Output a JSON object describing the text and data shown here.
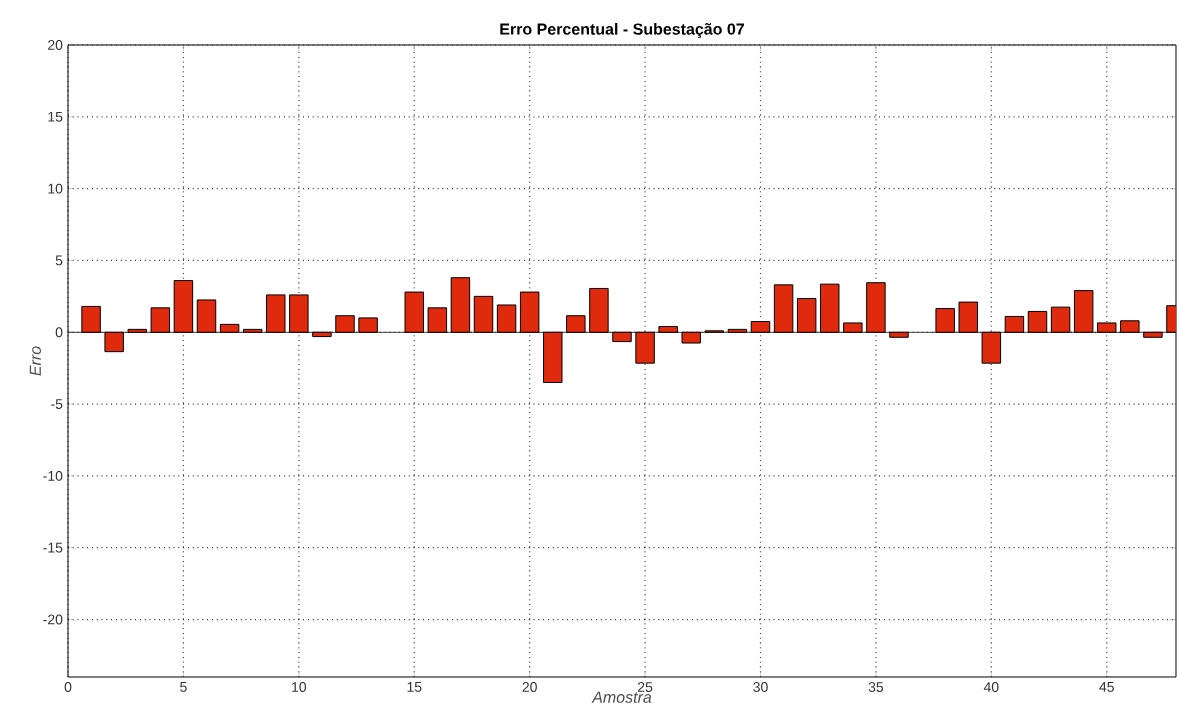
{
  "chart_data": {
    "type": "bar",
    "title": "Erro Percentual - Subestação 07",
    "xlabel": "Amostra",
    "ylabel": "Erro",
    "x": [
      1,
      2,
      3,
      4,
      5,
      6,
      7,
      8,
      9,
      10,
      11,
      12,
      13,
      14,
      15,
      16,
      17,
      18,
      19,
      20,
      21,
      22,
      23,
      24,
      25,
      26,
      27,
      28,
      29,
      30,
      31,
      32,
      33,
      34,
      35,
      36,
      37,
      38,
      39,
      40,
      41,
      42,
      43,
      44,
      45,
      46,
      47,
      48
    ],
    "values": [
      1.8,
      -1.35,
      0.2,
      1.7,
      3.6,
      2.25,
      0.55,
      0.2,
      2.6,
      2.6,
      -0.3,
      1.15,
      1.0,
      null,
      2.8,
      1.7,
      3.8,
      2.5,
      1.9,
      2.8,
      -3.5,
      1.15,
      3.05,
      -0.65,
      -2.15,
      0.4,
      -0.75,
      0.1,
      0.2,
      0.75,
      3.3,
      2.35,
      3.35,
      0.65,
      3.45,
      -0.35,
      null,
      1.65,
      2.1,
      -2.15,
      1.1,
      1.45,
      1.75,
      2.9,
      0.65,
      0.8,
      -0.35,
      1.85
    ],
    "color": "#e02a0e",
    "xlim": [
      0,
      48
    ],
    "xticks": [
      0,
      5,
      10,
      15,
      20,
      25,
      30,
      35,
      40,
      45
    ],
    "ylim": [
      -24,
      20
    ],
    "yticks": [
      -20,
      -15,
      -10,
      -5,
      0,
      5,
      10,
      15,
      20
    ],
    "grid": true
  }
}
